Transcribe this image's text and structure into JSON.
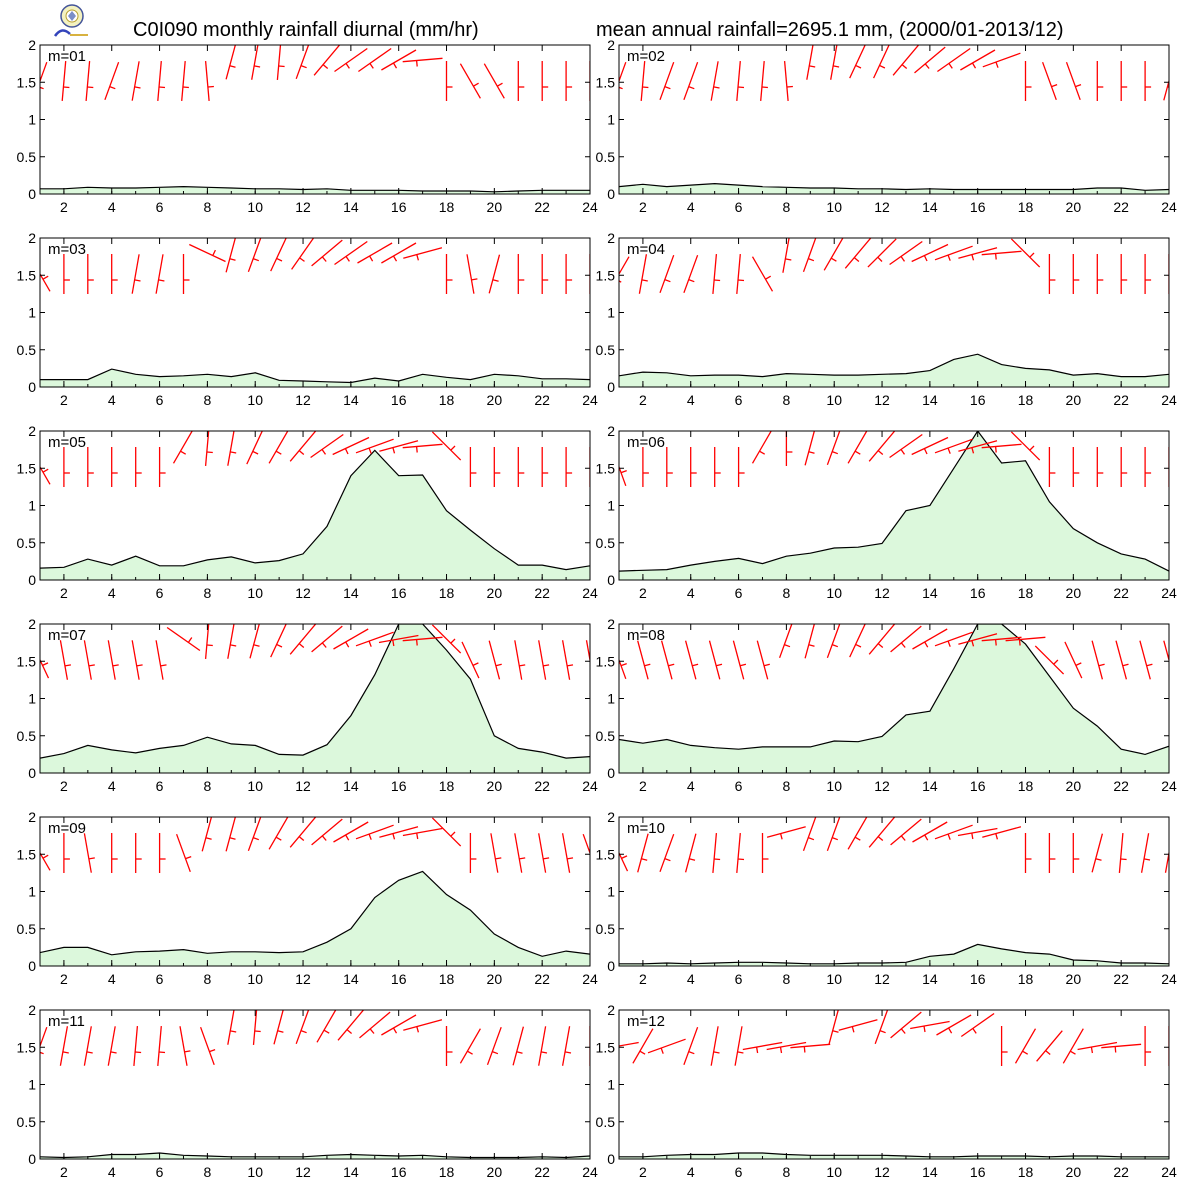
{
  "header": {
    "title_left": "C0I090 monthly rainfall diurnal (mm/hr)",
    "title_right": "mean annual rainfall=2695.1 mm, (2000/01-2013/12)"
  },
  "colors": {
    "fill": "#dcf8dc",
    "line": "#000000",
    "wind": "#ff0000"
  },
  "chart_data": {
    "type": "area",
    "panels_layout": "6 rows x 2 columns",
    "xlim": [
      1,
      24
    ],
    "ylim": [
      0,
      2
    ],
    "x_ticks": [
      "2",
      "4",
      "6",
      "8",
      "10",
      "12",
      "14",
      "16",
      "18",
      "20",
      "22",
      "24"
    ],
    "y_ticks": [
      "0",
      "0.5",
      "1",
      "1.5",
      "2"
    ],
    "x": [
      1,
      2,
      3,
      4,
      5,
      6,
      7,
      8,
      9,
      10,
      11,
      12,
      13,
      14,
      15,
      16,
      17,
      18,
      19,
      20,
      21,
      22,
      23,
      24
    ],
    "overlay": "red wind barbs along the top of each panel, one per hour",
    "panels": [
      {
        "label": "m=01",
        "values": [
          0.07,
          0.07,
          0.09,
          0.08,
          0.08,
          0.09,
          0.1,
          0.09,
          0.08,
          0.07,
          0.07,
          0.06,
          0.07,
          0.05,
          0.05,
          0.05,
          0.04,
          0.04,
          0.04,
          0.03,
          0.04,
          0.05,
          0.05,
          0.05
        ],
        "wind_tilt": [
          -20,
          -5,
          -5,
          -20,
          -10,
          -5,
          -5,
          5,
          -15,
          -10,
          -5,
          -20,
          -40,
          -55,
          -55,
          -60,
          -85,
          0,
          30,
          30,
          0,
          0,
          0,
          0
        ],
        "wind_high": [
          0,
          0,
          0,
          0,
          0,
          0,
          0,
          0,
          1,
          1,
          1,
          1,
          1,
          1,
          1,
          1,
          1,
          0,
          0,
          0,
          0,
          0,
          0,
          0
        ]
      },
      {
        "label": "m=02",
        "values": [
          0.1,
          0.13,
          0.1,
          0.12,
          0.14,
          0.12,
          0.1,
          0.09,
          0.08,
          0.08,
          0.07,
          0.07,
          0.06,
          0.07,
          0.06,
          0.06,
          0.06,
          0.06,
          0.06,
          0.06,
          0.08,
          0.08,
          0.05,
          0.06
        ],
        "wind_tilt": [
          -20,
          -5,
          -20,
          -20,
          -10,
          -5,
          -5,
          5,
          -10,
          -10,
          -25,
          -25,
          -40,
          -50,
          -55,
          -60,
          -70,
          0,
          20,
          20,
          0,
          0,
          0,
          -15
        ],
        "wind_high": [
          0,
          0,
          0,
          0,
          0,
          0,
          0,
          0,
          1,
          1,
          1,
          1,
          1,
          1,
          1,
          1,
          1,
          0,
          0,
          0,
          0,
          0,
          0,
          0
        ]
      },
      {
        "label": "m=03",
        "values": [
          0.1,
          0.1,
          0.1,
          0.24,
          0.17,
          0.14,
          0.15,
          0.17,
          0.14,
          0.19,
          0.09,
          0.08,
          0.07,
          0.06,
          0.12,
          0.08,
          0.17,
          0.13,
          0.1,
          0.17,
          0.15,
          0.11,
          0.11,
          0.1
        ],
        "wind_tilt": [
          30,
          0,
          0,
          0,
          -10,
          -10,
          0,
          65,
          -15,
          -20,
          -25,
          -35,
          -50,
          -55,
          -60,
          -60,
          -75,
          0,
          10,
          -15,
          0,
          0,
          0,
          0
        ],
        "wind_high": [
          0,
          0,
          0,
          0,
          0,
          0,
          0,
          1,
          1,
          1,
          1,
          1,
          1,
          1,
          1,
          1,
          1,
          0,
          0,
          0,
          0,
          0,
          0,
          0
        ]
      },
      {
        "label": "m=04",
        "values": [
          0.15,
          0.2,
          0.19,
          0.15,
          0.16,
          0.16,
          0.14,
          0.18,
          0.17,
          0.16,
          0.16,
          0.17,
          0.18,
          0.22,
          0.37,
          0.44,
          0.3,
          0.25,
          0.23,
          0.16,
          0.18,
          0.14,
          0.14,
          0.17
        ],
        "wind_tilt": [
          -30,
          -10,
          -20,
          -20,
          -5,
          -5,
          30,
          -10,
          -20,
          -30,
          -40,
          -45,
          -55,
          -65,
          -70,
          -75,
          -85,
          45,
          0,
          0,
          0,
          0,
          0,
          0
        ],
        "wind_high": [
          0,
          0,
          0,
          0,
          0,
          0,
          0,
          1,
          1,
          1,
          1,
          1,
          1,
          1,
          1,
          1,
          1,
          1,
          0,
          0,
          0,
          0,
          0,
          0
        ]
      },
      {
        "label": "m=05",
        "values": [
          0.16,
          0.17,
          0.28,
          0.2,
          0.32,
          0.19,
          0.19,
          0.27,
          0.31,
          0.23,
          0.26,
          0.35,
          0.72,
          1.4,
          1.74,
          1.4,
          1.41,
          0.93,
          0.67,
          0.42,
          0.2,
          0.2,
          0.14,
          0.19
        ],
        "wind_tilt": [
          30,
          0,
          0,
          0,
          0,
          0,
          -30,
          -5,
          -10,
          -25,
          -30,
          -40,
          -55,
          -65,
          -70,
          -75,
          -85,
          45,
          0,
          0,
          0,
          0,
          0,
          0
        ],
        "wind_high": [
          0,
          0,
          0,
          0,
          0,
          0,
          1,
          1,
          1,
          1,
          1,
          1,
          1,
          1,
          1,
          1,
          1,
          1,
          0,
          0,
          0,
          0,
          0,
          0
        ]
      },
      {
        "label": "m=06",
        "values": [
          0.12,
          0.13,
          0.14,
          0.2,
          0.25,
          0.29,
          0.22,
          0.32,
          0.36,
          0.43,
          0.44,
          0.49,
          0.93,
          1.0,
          1.5,
          2.18,
          1.57,
          1.6,
          1.05,
          0.69,
          0.5,
          0.35,
          0.28,
          0.12
        ],
        "wind_tilt": [
          20,
          0,
          0,
          0,
          0,
          0,
          -30,
          0,
          -15,
          -20,
          -30,
          -40,
          -55,
          -65,
          -70,
          -75,
          -85,
          45,
          0,
          0,
          0,
          0,
          0,
          0
        ],
        "wind_high": [
          0,
          0,
          0,
          0,
          0,
          0,
          1,
          1,
          1,
          1,
          1,
          1,
          1,
          1,
          1,
          1,
          1,
          1,
          0,
          0,
          0,
          0,
          0,
          0
        ]
      },
      {
        "label": "m=07",
        "values": [
          0.2,
          0.26,
          0.37,
          0.31,
          0.27,
          0.33,
          0.37,
          0.48,
          0.39,
          0.37,
          0.25,
          0.24,
          0.38,
          0.77,
          1.32,
          2.25,
          2.18,
          1.65,
          1.26,
          0.5,
          0.33,
          0.28,
          0.2,
          0.22
        ],
        "wind_tilt": [
          25,
          10,
          10,
          10,
          10,
          10,
          55,
          -5,
          -10,
          -15,
          -25,
          -40,
          -50,
          -60,
          -70,
          -80,
          -85,
          45,
          25,
          15,
          10,
          10,
          10,
          10
        ],
        "wind_high": [
          0,
          0,
          0,
          0,
          0,
          0,
          1,
          1,
          1,
          1,
          1,
          1,
          1,
          1,
          1,
          1,
          1,
          1,
          0,
          0,
          0,
          0,
          0,
          0
        ]
      },
      {
        "label": "m=08",
        "values": [
          0.45,
          0.4,
          0.45,
          0.37,
          0.34,
          0.32,
          0.35,
          0.35,
          0.35,
          0.43,
          0.42,
          0.49,
          0.78,
          0.83,
          1.4,
          2.75,
          2.1,
          1.73,
          1.3,
          0.87,
          0.63,
          0.32,
          0.25,
          0.36
        ],
        "wind_tilt": [
          20,
          15,
          15,
          15,
          15,
          15,
          15,
          -20,
          -15,
          -20,
          -25,
          -40,
          -50,
          -60,
          -70,
          -75,
          -85,
          -85,
          45,
          25,
          15,
          15,
          15,
          15
        ],
        "wind_high": [
          0,
          0,
          0,
          0,
          0,
          0,
          0,
          1,
          1,
          1,
          1,
          1,
          1,
          1,
          1,
          1,
          1,
          1,
          0,
          0,
          0,
          0,
          0,
          0
        ]
      },
      {
        "label": "m=09",
        "values": [
          0.18,
          0.25,
          0.25,
          0.15,
          0.19,
          0.2,
          0.22,
          0.17,
          0.19,
          0.19,
          0.18,
          0.19,
          0.32,
          0.5,
          0.92,
          1.15,
          1.27,
          0.96,
          0.75,
          0.43,
          0.25,
          0.13,
          0.2,
          0.16
        ],
        "wind_tilt": [
          30,
          0,
          10,
          0,
          0,
          0,
          20,
          -15,
          -15,
          -20,
          -30,
          -40,
          -50,
          -60,
          -70,
          -75,
          -80,
          45,
          0,
          10,
          10,
          10,
          10,
          20
        ],
        "wind_high": [
          0,
          0,
          0,
          0,
          0,
          0,
          0,
          1,
          1,
          1,
          1,
          1,
          1,
          1,
          1,
          1,
          1,
          1,
          0,
          0,
          0,
          0,
          0,
          0
        ]
      },
      {
        "label": "m=10",
        "values": [
          0.03,
          0.03,
          0.04,
          0.03,
          0.04,
          0.05,
          0.05,
          0.04,
          0.03,
          0.03,
          0.04,
          0.04,
          0.05,
          0.13,
          0.16,
          0.29,
          0.23,
          0.18,
          0.16,
          0.08,
          0.07,
          0.04,
          0.04,
          0.03
        ],
        "wind_tilt": [
          25,
          -15,
          -20,
          -15,
          -5,
          -5,
          0,
          -75,
          -20,
          -20,
          -30,
          -40,
          -50,
          -60,
          -70,
          -80,
          -75,
          0,
          0,
          0,
          -15,
          -5,
          -10,
          -10
        ],
        "wind_high": [
          0,
          0,
          0,
          0,
          0,
          0,
          0,
          1,
          1,
          1,
          1,
          1,
          1,
          1,
          1,
          1,
          1,
          0,
          0,
          0,
          0,
          0,
          0,
          0
        ]
      },
      {
        "label": "m=11",
        "values": [
          0.03,
          0.02,
          0.03,
          0.06,
          0.06,
          0.08,
          0.05,
          0.04,
          0.03,
          0.03,
          0.03,
          0.03,
          0.05,
          0.06,
          0.05,
          0.04,
          0.05,
          0.03,
          0.02,
          0.02,
          0.02,
          0.03,
          0.02,
          0.04
        ],
        "wind_tilt": [
          -20,
          -10,
          -10,
          -10,
          -5,
          -5,
          10,
          20,
          -10,
          -5,
          -15,
          -20,
          -30,
          -40,
          -50,
          -60,
          -75,
          0,
          -30,
          -20,
          -15,
          -10,
          -10,
          0
        ],
        "wind_high": [
          0,
          0,
          0,
          0,
          0,
          0,
          0,
          0,
          1,
          1,
          1,
          1,
          1,
          1,
          1,
          1,
          1,
          0,
          0,
          0,
          0,
          0,
          0,
          0
        ]
      },
      {
        "label": "m=12",
        "values": [
          0.03,
          0.03,
          0.05,
          0.06,
          0.06,
          0.08,
          0.08,
          0.06,
          0.05,
          0.05,
          0.05,
          0.05,
          0.04,
          0.03,
          0.03,
          0.04,
          0.04,
          0.04,
          0.03,
          0.04,
          0.04,
          0.03,
          0.03,
          0.03
        ],
        "wind_tilt": [
          -80,
          -30,
          -70,
          -20,
          -10,
          -10,
          -80,
          -80,
          -85,
          -15,
          -75,
          -20,
          -50,
          -80,
          -60,
          -55,
          0,
          -30,
          -40,
          -30,
          -80,
          -85,
          0,
          0
        ],
        "wind_high": [
          0,
          0,
          0,
          0,
          0,
          0,
          0,
          0,
          0,
          1,
          1,
          1,
          1,
          1,
          1,
          1,
          0,
          0,
          0,
          0,
          0,
          0,
          0,
          0
        ]
      }
    ]
  }
}
